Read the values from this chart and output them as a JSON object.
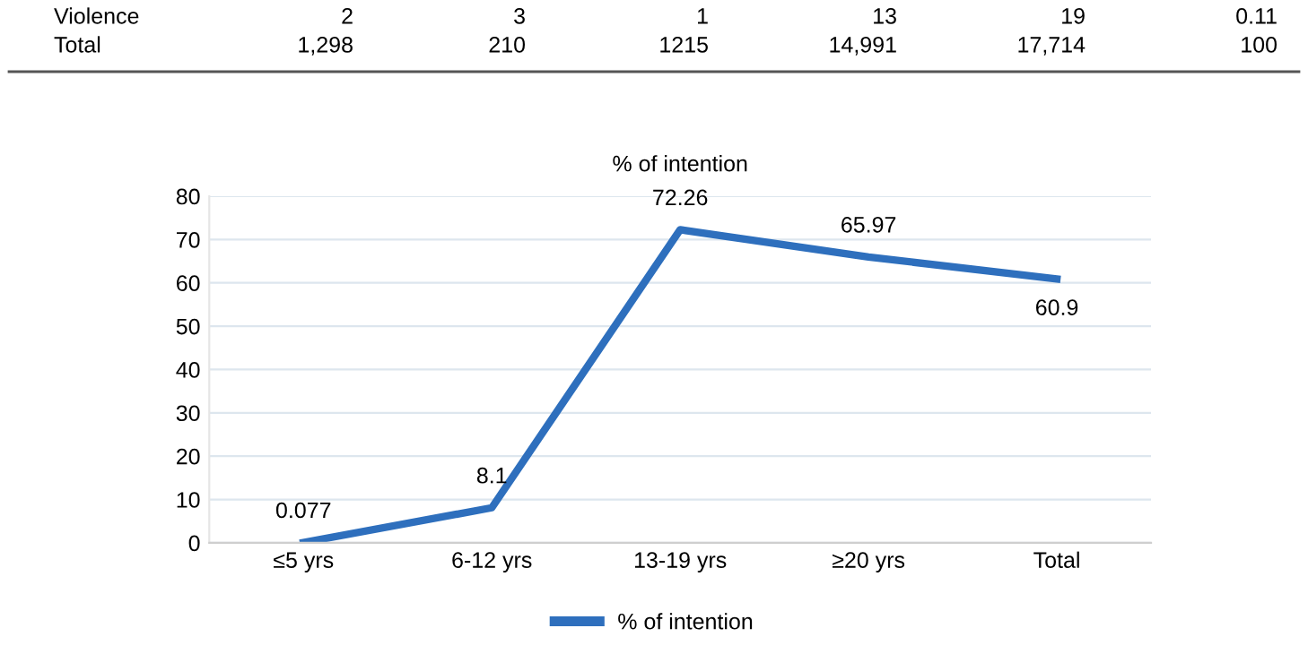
{
  "chart_data": {
    "type": "line",
    "title": "% of intention",
    "categories": [
      "≤5 yrs",
      "6-12 yrs",
      "13-19 yrs",
      "≥20 yrs",
      "Total"
    ],
    "series": [
      {
        "name": "% of intention",
        "color": "#2e6fbd",
        "values": [
          0.077,
          8.1,
          72.26,
          65.97,
          60.9
        ]
      }
    ],
    "ylim": [
      0,
      80
    ],
    "yticks": [
      0,
      10,
      20,
      30,
      40,
      50,
      60,
      70,
      80
    ],
    "grid": "y",
    "legend": "bottom",
    "marker": "none",
    "line_style": "solid",
    "data_labels": true,
    "annotations": [
      "Violence",
      "2",
      "3",
      "1",
      "13",
      "19",
      "0.11",
      "Total",
      "1,298",
      "210",
      "1215",
      "14,991",
      "17,714",
      "100"
    ]
  }
}
